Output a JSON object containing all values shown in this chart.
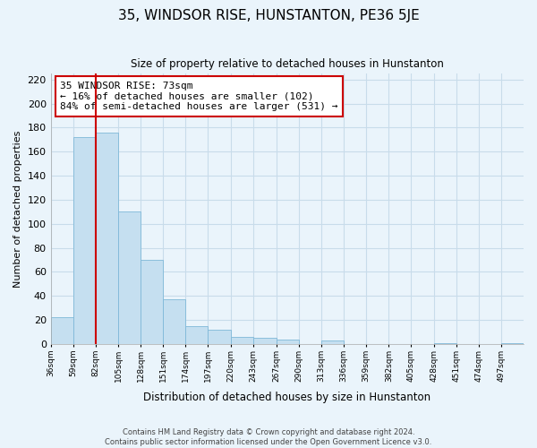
{
  "title": "35, WINDSOR RISE, HUNSTANTON, PE36 5JE",
  "subtitle": "Size of property relative to detached houses in Hunstanton",
  "xlabel": "Distribution of detached houses by size in Hunstanton",
  "ylabel": "Number of detached properties",
  "bin_labels": [
    "36sqm",
    "59sqm",
    "82sqm",
    "105sqm",
    "128sqm",
    "151sqm",
    "174sqm",
    "197sqm",
    "220sqm",
    "243sqm",
    "267sqm",
    "290sqm",
    "313sqm",
    "336sqm",
    "359sqm",
    "382sqm",
    "405sqm",
    "428sqm",
    "451sqm",
    "474sqm",
    "497sqm"
  ],
  "bar_values": [
    22,
    172,
    176,
    110,
    70,
    37,
    15,
    12,
    6,
    5,
    4,
    0,
    3,
    0,
    0,
    0,
    0,
    1,
    0,
    0,
    1
  ],
  "bar_color": "#c5dff0",
  "bar_edge_color": "#7fb8d8",
  "vline_x_bin_index": 1,
  "vline_color": "#cc0000",
  "annotation_text": "35 WINDSOR RISE: 73sqm\n← 16% of detached houses are smaller (102)\n84% of semi-detached houses are larger (531) →",
  "annotation_box_color": "#ffffff",
  "annotation_box_edge": "#cc0000",
  "ylim": [
    0,
    225
  ],
  "yticks": [
    0,
    20,
    40,
    60,
    80,
    100,
    120,
    140,
    160,
    180,
    200,
    220
  ],
  "grid_color": "#c8dcea",
  "background_color": "#eaf4fb",
  "footer_text": "Contains HM Land Registry data © Crown copyright and database right 2024.\nContains public sector information licensed under the Open Government Licence v3.0.",
  "bin_edges": [
    36,
    59,
    82,
    105,
    128,
    151,
    174,
    197,
    220,
    243,
    267,
    290,
    313,
    336,
    359,
    382,
    405,
    428,
    451,
    474,
    497,
    520
  ]
}
